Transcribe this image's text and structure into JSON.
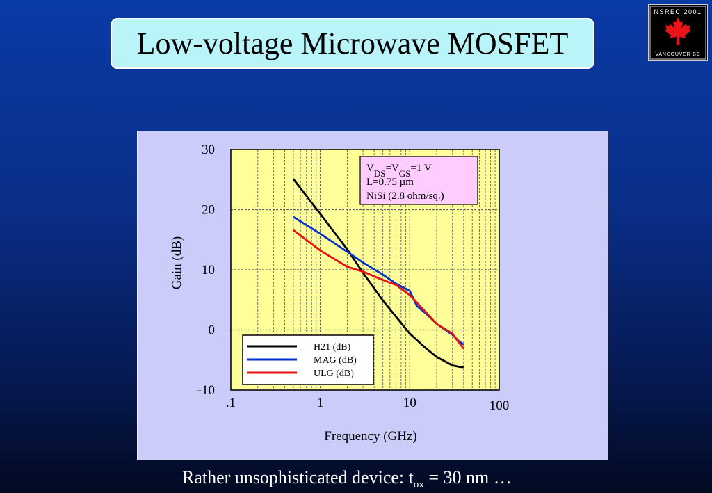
{
  "slide": {
    "title": "Low-voltage  Microwave MOSFET",
    "logo": {
      "top_text": "NSREC 2001",
      "bottom_text": "VANCOUVER BC",
      "icon": "maple-leaf-icon",
      "leaf_color": "#e8141a"
    },
    "footer": {
      "prefix": "Rather unsophisticated device: t",
      "sub": "ox",
      "suffix": " = 30 nm …"
    }
  },
  "chart_data": {
    "type": "line",
    "xlabel": "Frequency (GHz)",
    "ylabel": "Gain (dB)",
    "x_scale": "log",
    "xlim": [
      0.1,
      100
    ],
    "ylim": [
      -10,
      30
    ],
    "x_ticks": [
      {
        "value": 0.1,
        "label": ".1"
      },
      {
        "value": 1,
        "label": "1"
      },
      {
        "value": 10,
        "label": "10"
      },
      {
        "value": 100,
        "label": "100"
      }
    ],
    "y_ticks": [
      {
        "value": 30,
        "label": "30"
      },
      {
        "value": 20,
        "label": "20"
      },
      {
        "value": 10,
        "label": "10"
      },
      {
        "value": 0,
        "label": "0"
      },
      {
        "value": -10,
        "label": "-10"
      }
    ],
    "grid": true,
    "plot_background": "#ffff99",
    "annotation": {
      "lines": [
        {
          "parts": [
            {
              "t": "V"
            },
            {
              "t": "DS",
              "sub": true
            },
            {
              "t": "=V"
            },
            {
              "t": "GS",
              "sub": true
            },
            {
              "t": "=1 V"
            }
          ]
        },
        {
          "parts": [
            {
              "t": "L=0.75 µm"
            }
          ]
        },
        {
          "parts": [
            {
              "t": "NiSi (2.8 ohm/sq.)"
            }
          ]
        }
      ],
      "background": "#ffccff",
      "placement": "top-right"
    },
    "legend_placement": "bottom-left",
    "series": [
      {
        "name": "H21 (dB)",
        "color": "#000000",
        "x": [
          0.5,
          1,
          2,
          3,
          5,
          10,
          15,
          20,
          30,
          35,
          40
        ],
        "y": [
          25.1,
          19.3,
          13.4,
          9.5,
          4.9,
          -0.6,
          -3.0,
          -4.5,
          -5.9,
          -6.1,
          -6.2
        ]
      },
      {
        "name": "MAG (dB)",
        "color": "#0033cc",
        "x": [
          0.5,
          1,
          2,
          3,
          5,
          7,
          10,
          12,
          15,
          20,
          30,
          35,
          40
        ],
        "y": [
          18.8,
          16.0,
          13.0,
          11.2,
          9.2,
          7.7,
          6.5,
          4.0,
          2.8,
          1.0,
          -0.8,
          -1.8,
          -2.4
        ]
      },
      {
        "name": "ULG (dB)",
        "color": "#e81010",
        "x": [
          0.5,
          1,
          2,
          3,
          5,
          7,
          10,
          15,
          20,
          30,
          35,
          40
        ],
        "y": [
          16.6,
          13.2,
          10.5,
          9.7,
          8.3,
          7.5,
          5.8,
          3.0,
          1.0,
          -0.6,
          -2.0,
          -3.1
        ]
      }
    ]
  }
}
